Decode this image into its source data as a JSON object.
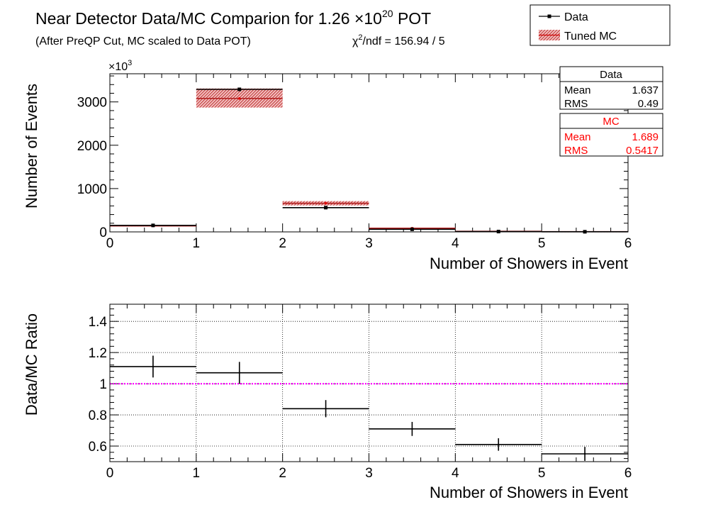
{
  "header": {
    "title": "Near Detector Data/MC Comparion for 1.26 ×10",
    "title_exp": "20",
    "title_suffix": " POT",
    "subtitle": "(After PreQP Cut, MC scaled to Data POT)",
    "chi2_prefix": "χ",
    "chi2_exp": "2",
    "chi2_text": "/ndf = 156.94 / 5"
  },
  "legend": {
    "position": "top-right",
    "entries": [
      {
        "label": "Data",
        "style": "marker-line"
      },
      {
        "label": "Tuned MC",
        "style": "hatched-red-band"
      }
    ]
  },
  "stats": {
    "data": {
      "title": "Data",
      "mean_label": "Mean",
      "mean": "1.637",
      "rms_label": "RMS",
      "rms": "0.49",
      "color": "#000000"
    },
    "mc": {
      "title": "MC",
      "mean_label": "Mean",
      "mean": "1.689",
      "rms_label": "RMS",
      "rms": "0.5417",
      "color": "#ff0000"
    }
  },
  "chart_data": [
    {
      "type": "bar",
      "panel": "top",
      "xlabel": "Number of Showers in Event",
      "ylabel": "Number of Events",
      "y_multiplier": "×10",
      "y_multiplier_exp": "3",
      "xlim": [
        0,
        6
      ],
      "ylim": [
        0,
        3650
      ],
      "xticks": [
        "0",
        "1",
        "2",
        "3",
        "4",
        "5",
        "6"
      ],
      "yticks": [
        {
          "value": 0,
          "label": "0"
        },
        {
          "value": 1000,
          "label": "1000"
        },
        {
          "value": 2000,
          "label": "2000"
        },
        {
          "value": 3000,
          "label": "3000"
        }
      ],
      "bin_edges": [
        0,
        1,
        2,
        3,
        4,
        5,
        6
      ],
      "series": [
        {
          "name": "Data",
          "color": "#000000",
          "values": [
            150,
            3290,
            560,
            60,
            8,
            3
          ],
          "errors": [
            6,
            20,
            15,
            6,
            2,
            1
          ]
        },
        {
          "name": "Tuned MC",
          "color": "#b22222",
          "values": [
            138,
            3080,
            660,
            85,
            13,
            5
          ],
          "band_low": [
            128,
            2870,
            610,
            75,
            10,
            3
          ],
          "band_high": [
            148,
            3310,
            710,
            95,
            16,
            7
          ]
        }
      ],
      "grid": false
    },
    {
      "type": "line",
      "panel": "bottom",
      "xlabel": "Number of Showers in Event",
      "ylabel": "Data/MC Ratio",
      "xlim": [
        0,
        6
      ],
      "ylim": [
        0.5,
        1.51
      ],
      "xticks": [
        "0",
        "1",
        "2",
        "3",
        "4",
        "5",
        "6"
      ],
      "yticks": [
        {
          "value": 0.6,
          "label": "0.6"
        },
        {
          "value": 0.8,
          "label": "0.8"
        },
        {
          "value": 1.0,
          "label": "1"
        },
        {
          "value": 1.2,
          "label": "1.2"
        },
        {
          "value": 1.4,
          "label": "1.4"
        }
      ],
      "bin_edges": [
        0,
        1,
        2,
        3,
        4,
        5,
        6
      ],
      "series": [
        {
          "name": "Data/MC",
          "color": "#000000",
          "values": [
            1.11,
            1.07,
            0.84,
            0.71,
            0.61,
            0.55
          ],
          "errors": [
            0.07,
            0.07,
            0.055,
            0.045,
            0.04,
            0.045
          ]
        }
      ],
      "reference_line": {
        "value": 1.0,
        "color": "#ff00ff"
      },
      "grid": true
    }
  ]
}
